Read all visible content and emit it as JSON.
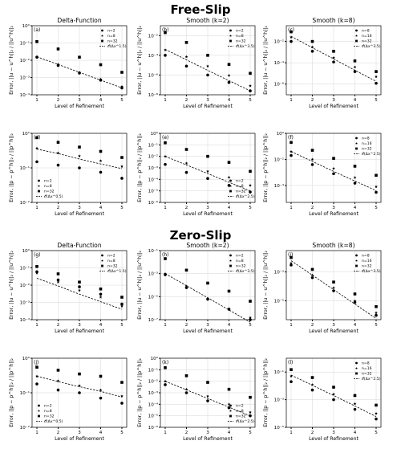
{
  "sections": [
    {
      "title": "Free-Slip"
    },
    {
      "title": "Zero-Slip"
    }
  ],
  "chart_data": [
    {
      "label": "(a)",
      "title": "Delta-Function",
      "type": "scatter",
      "xlabel": "Level of Refinement",
      "ylabel": "Error, ||u − u^h||₂ / ||u^h||₂",
      "x": [
        1,
        2,
        3,
        4,
        5
      ],
      "ylim": [
        0.0001,
        1
      ],
      "log_y": true,
      "yticks": [
        "10⁻⁴",
        "10⁻³",
        "10⁻²",
        "10⁻¹",
        "10⁰"
      ],
      "yticks_log": [
        -4,
        -3,
        -2,
        -1,
        0
      ],
      "legend": "top-right",
      "series": [
        {
          "name": "n=2",
          "marker": "circle",
          "values": [
            0.015,
            0.005,
            0.0018,
            0.0007,
            0.00025
          ]
        },
        {
          "name": "n=8",
          "marker": "star",
          "values": [
            0.016,
            0.0058,
            0.002,
            0.0008,
            0.0003
          ]
        },
        {
          "name": "n=32",
          "marker": "square",
          "values": [
            0.12,
            0.045,
            0.015,
            0.0055,
            0.002
          ]
        },
        {
          "name": "𝒪(Δx^1.5)",
          "marker": "line",
          "values": [
            0.016,
            0.0057,
            0.002,
            0.00071,
            0.00025
          ]
        }
      ]
    },
    {
      "label": "(b)",
      "title": "Smooth (k=2)",
      "type": "scatter",
      "xlabel": "Level of Refinement",
      "ylabel": "Error, ||u − u^h||₂ / ||u^h||₂",
      "x": [
        1,
        2,
        3,
        4,
        5
      ],
      "ylim": [
        1e-08,
        0.1
      ],
      "log_y": true,
      "yticks": [
        "10⁻⁸",
        "10⁻⁶",
        "10⁻⁴",
        "10⁻²"
      ],
      "yticks_log": [
        -8,
        -6,
        -4,
        -2
      ],
      "legend": "top-right",
      "series": [
        {
          "name": "n=2",
          "marker": "circle",
          "values": [
            0.0001,
            8e-06,
            1e-06,
            1.8e-07,
            2.5e-08
          ]
        },
        {
          "name": "n=8",
          "marker": "star",
          "values": [
            0.00035,
            7e-05,
            8e-06,
            9e-07,
            8e-08
          ]
        },
        {
          "name": "n=32",
          "marker": "square",
          "values": [
            0.02,
            0.002,
            0.0001,
            1.2e-05,
            1.5e-06
          ]
        },
        {
          "name": "𝒪(Δx^3.5)",
          "marker": "line",
          "values": [
            0.0004,
            3.5e-05,
            3e-06,
            2.7e-07,
            2.5e-08
          ]
        }
      ]
    },
    {
      "label": "(c)",
      "title": "Smooth (k=8)",
      "type": "scatter",
      "xlabel": "Level of Refinement",
      "ylabel": "Error, ||u − u^h||₂ / ||u^h||₂",
      "x": [
        1,
        2,
        3,
        4,
        5
      ],
      "ylim": [
        1e-07,
        0.3
      ],
      "log_y": true,
      "yticks": [
        "10⁻⁶",
        "10⁻⁴",
        "10⁻²"
      ],
      "yticks_log": [
        -6,
        -4,
        -2
      ],
      "legend": "top-right",
      "series": [
        {
          "name": "n=8",
          "marker": "circle",
          "values": [
            0.01,
            0.0012,
            0.00012,
            1.5e-05,
            1.2e-06
          ]
        },
        {
          "name": "n=16",
          "marker": "star",
          "values": [
            0.025,
            0.003,
            0.0003,
            4e-05,
            5e-06
          ]
        },
        {
          "name": "n=32",
          "marker": "square",
          "values": [
            0.08,
            0.01,
            0.0012,
            0.00015,
            1.5e-05
          ]
        },
        {
          "name": "𝒪(Δx^3.5)",
          "marker": "line",
          "values": [
            0.03,
            0.0026,
            0.00023,
            2e-05,
            1.8e-06
          ]
        }
      ]
    },
    {
      "label": "(d)",
      "title": "",
      "type": "scatter",
      "xlabel": "Level of Refinement",
      "ylabel": "Error, ||p − p^h||₂ / ||p^h||₂",
      "x": [
        1,
        2,
        3,
        4,
        5
      ],
      "ylim": [
        0.01,
        1
      ],
      "log_y": true,
      "yticks": [
        "10⁻²",
        "10⁻¹",
        "10⁰"
      ],
      "yticks_log": [
        -2,
        -1,
        0
      ],
      "legend": "bottom-left",
      "series": [
        {
          "name": "n=2",
          "marker": "circle",
          "values": [
            0.15,
            0.12,
            0.1,
            0.075,
            0.05
          ]
        },
        {
          "name": "n=8",
          "marker": "star",
          "values": [
            0.37,
            0.27,
            0.22,
            0.16,
            0.11
          ]
        },
        {
          "name": "n=32",
          "marker": "square",
          "values": [
            0.75,
            0.55,
            0.4,
            0.3,
            0.2
          ]
        },
        {
          "name": "𝒪(Δx^0.5)",
          "marker": "line",
          "values": [
            0.35,
            0.26,
            0.18,
            0.13,
            0.095
          ]
        }
      ]
    },
    {
      "label": "(e)",
      "title": "",
      "type": "scatter",
      "xlabel": "Level of Refinement",
      "ylabel": "Error, ||p − p^h||₂ / ||p^h||₂",
      "x": [
        1,
        2,
        3,
        4,
        5
      ],
      "ylim": [
        1e-06,
        1
      ],
      "log_y": true,
      "yticks": [
        "10⁻⁶",
        "10⁻⁵",
        "10⁻⁴",
        "10⁻³",
        "10⁻²",
        "10⁻¹",
        "10⁰"
      ],
      "yticks_log": [
        -6,
        -5,
        -4,
        -3,
        -2,
        -1,
        0
      ],
      "legend": "bottom-right",
      "series": [
        {
          "name": "n=2",
          "marker": "circle",
          "values": [
            0.002,
            0.0004,
            0.00012,
            3e-05,
            8e-06
          ]
        },
        {
          "name": "n=8",
          "marker": "star",
          "values": [
            0.01,
            0.0025,
            0.0005,
            0.00015,
            3e-05
          ]
        },
        {
          "name": "n=32",
          "marker": "square",
          "values": [
            0.15,
            0.04,
            0.01,
            0.003,
            0.0005
          ]
        },
        {
          "name": "𝒪(Δx^2.5)",
          "marker": "line",
          "values": [
            0.01,
            0.0018,
            0.00032,
            5.6e-05,
            1e-05
          ]
        }
      ]
    },
    {
      "label": "(f)",
      "title": "",
      "type": "scatter",
      "xlabel": "Level of Refinement",
      "ylabel": "Error, ||p − p^h||₂ / ||p^h||₂",
      "x": [
        1,
        2,
        3,
        4,
        5
      ],
      "ylim": [
        5e-06,
        1
      ],
      "log_y": true,
      "yticks": [
        "10⁻⁴",
        "10⁻²",
        "10⁰"
      ],
      "yticks_log": [
        -4,
        -2,
        0
      ],
      "legend": "top-right",
      "series": [
        {
          "name": "n=8",
          "marker": "circle",
          "values": [
            0.02,
            0.004,
            0.0008,
            0.00015,
            3e-05
          ]
        },
        {
          "name": "n=16",
          "marker": "star",
          "values": [
            0.04,
            0.01,
            0.002,
            0.0004,
            8e-05
          ]
        },
        {
          "name": "n=32",
          "marker": "square",
          "values": [
            0.2,
            0.05,
            0.012,
            0.003,
            0.0006
          ]
        },
        {
          "name": "𝒪(Δx^2.5)",
          "marker": "line",
          "values": [
            0.04,
            0.007,
            0.0012,
            0.00022,
            4e-05
          ]
        }
      ]
    },
    {
      "label": "(g)",
      "title": "Delta-Function",
      "type": "scatter",
      "xlabel": "Level of Refinement",
      "ylabel": "Error, ||u − u^h||₂ / ||u^h||₂",
      "x": [
        1,
        2,
        3,
        4,
        5
      ],
      "ylim": [
        0.0001,
        1
      ],
      "log_y": true,
      "yticks": [
        "10⁻⁴",
        "10⁻³",
        "10⁻²",
        "10⁻¹",
        "10⁰"
      ],
      "yticks_log": [
        -4,
        -3,
        -2,
        -1,
        0
      ],
      "legend": "top-right",
      "series": [
        {
          "name": "n=2",
          "marker": "circle",
          "values": [
            0.06,
            0.02,
            0.008,
            0.003,
            0.0008
          ]
        },
        {
          "name": "n=8",
          "marker": "star",
          "values": [
            0.05,
            0.015,
            0.005,
            0.002,
            0.0006
          ]
        },
        {
          "name": "n=32",
          "marker": "square",
          "values": [
            0.12,
            0.045,
            0.015,
            0.006,
            0.002
          ]
        },
        {
          "name": "𝒪(Δx^1.5)",
          "marker": "line",
          "values": [
            0.025,
            0.009,
            0.003,
            0.0011,
            0.0004
          ]
        }
      ]
    },
    {
      "label": "(h)",
      "title": "Smooth (k=2)",
      "type": "scatter",
      "xlabel": "Level of Refinement",
      "ylabel": "Error, ||u − u^h||₂ / ||u^h||₂",
      "x": [
        1,
        2,
        3,
        4,
        5
      ],
      "ylim": [
        1e-07,
        0.1
      ],
      "log_y": true,
      "yticks": [
        "10⁻⁷",
        "10⁻⁵",
        "10⁻³",
        "10⁻¹"
      ],
      "yticks_log": [
        -7,
        -5,
        -3,
        -1
      ],
      "legend": "top-right",
      "series": [
        {
          "name": "n=2",
          "marker": "circle",
          "values": [
            0.0008,
            6e-05,
            6e-06,
            8e-07,
            1e-07
          ]
        },
        {
          "name": "n=8",
          "marker": "star",
          "values": [
            0.001,
            8e-05,
            7e-06,
            9e-07,
            1.5e-07
          ]
        },
        {
          "name": "n=32",
          "marker": "square",
          "values": [
            0.02,
            0.002,
            0.00015,
            3e-05,
            4e-06
          ]
        },
        {
          "name": "𝒪(Δx^3.5)",
          "marker": "line",
          "values": [
            0.001,
            9e-05,
            8e-06,
            7e-07,
            6e-08
          ]
        }
      ]
    },
    {
      "label": "(i)",
      "title": "Smooth (k=8)",
      "type": "scatter",
      "xlabel": "Level of Refinement",
      "ylabel": "Error, ||u − u^h||₂ / ||u^h||₂",
      "x": [
        1,
        2,
        3,
        4,
        5
      ],
      "ylim": [
        5e-07,
        0.03
      ],
      "log_y": true,
      "yticks": [
        "10⁻⁵",
        "10⁻³"
      ],
      "yticks_log": [
        -5,
        -3
      ],
      "legend": "top-right",
      "series": [
        {
          "name": "n=8",
          "marker": "circle",
          "values": [
            0.003,
            0.0004,
            5e-05,
            8e-06,
            1e-06
          ]
        },
        {
          "name": "n=16",
          "marker": "star",
          "values": [
            0.004,
            0.0006,
            8e-05,
            1e-05,
            1.5e-06
          ]
        },
        {
          "name": "n=32",
          "marker": "square",
          "values": [
            0.01,
            0.0015,
            0.0002,
            3e-05,
            4e-06
          ]
        },
        {
          "name": "𝒪(Δx^3.5)",
          "marker": "line",
          "values": [
            0.006,
            0.0006,
            6e-05,
            6e-06,
            6e-07
          ]
        }
      ]
    },
    {
      "label": "(j)",
      "title": "",
      "type": "scatter",
      "xlabel": "Level of Refinement",
      "ylabel": "Error, ||p − p^h||₂ / ||p^h||₂",
      "x": [
        1,
        2,
        3,
        4,
        5
      ],
      "ylim": [
        0.01,
        1
      ],
      "log_y": true,
      "yticks": [
        "10⁻²",
        "10⁻¹",
        "10⁰"
      ],
      "yticks_log": [
        -2,
        -1,
        0
      ],
      "legend": "bottom-left",
      "series": [
        {
          "name": "n=2",
          "marker": "circle",
          "values": [
            0.18,
            0.12,
            0.1,
            0.07,
            0.05
          ]
        },
        {
          "name": "n=8",
          "marker": "star",
          "values": [
            0.3,
            0.22,
            0.16,
            0.12,
            0.08
          ]
        },
        {
          "name": "n=32",
          "marker": "square",
          "values": [
            0.55,
            0.45,
            0.35,
            0.3,
            0.2
          ]
        },
        {
          "name": "𝒪(Δx^0.5)",
          "marker": "line",
          "values": [
            0.3,
            0.21,
            0.15,
            0.11,
            0.075
          ]
        }
      ]
    },
    {
      "label": "(k)",
      "title": "",
      "type": "scatter",
      "xlabel": "Level of Refinement",
      "ylabel": "Error, ||p − p^h||₂ / ||p^h||₂",
      "x": [
        1,
        2,
        3,
        4,
        5
      ],
      "ylim": [
        1e-06,
        1
      ],
      "log_y": true,
      "yticks": [
        "10⁻⁶",
        "10⁻⁵",
        "10⁻⁴",
        "10⁻³",
        "10⁻²",
        "10⁻¹",
        "10⁰"
      ],
      "yticks_log": [
        -6,
        -5,
        -4,
        -3,
        -2,
        -1,
        0
      ],
      "legend": "bottom-right",
      "series": [
        {
          "name": "n=2",
          "marker": "circle",
          "values": [
            0.005,
            0.001,
            0.0002,
            5e-05,
            1e-05
          ]
        },
        {
          "name": "n=8",
          "marker": "star",
          "values": [
            0.01,
            0.002,
            0.0005,
            0.0001,
            2e-05
          ]
        },
        {
          "name": "n=32",
          "marker": "square",
          "values": [
            0.15,
            0.03,
            0.008,
            0.002,
            0.0004
          ]
        },
        {
          "name": "𝒪(Δx^2.5)",
          "marker": "line",
          "values": [
            0.01,
            0.0018,
            0.00032,
            5.6e-05,
            1e-05
          ]
        }
      ]
    },
    {
      "label": "(l)",
      "title": "",
      "type": "scatter",
      "xlabel": "Level of Refinement",
      "ylabel": "Error, ||p − p^h||₂ / ||p^h||₂",
      "x": [
        1,
        2,
        3,
        4,
        5
      ],
      "ylim": [
        1e-05,
        1
      ],
      "log_y": true,
      "yticks": [
        "10⁻⁵",
        "10⁻³",
        "10⁻¹"
      ],
      "yticks_log": [
        -5,
        -3,
        -1
      ],
      "legend": "top-right",
      "series": [
        {
          "name": "n=8",
          "marker": "circle",
          "values": [
            0.02,
            0.005,
            0.001,
            0.0002,
            4e-05
          ]
        },
        {
          "name": "n=16",
          "marker": "star",
          "values": [
            0.05,
            0.012,
            0.0025,
            0.0005,
            0.0001
          ]
        },
        {
          "name": "n=32",
          "marker": "square",
          "values": [
            0.15,
            0.04,
            0.008,
            0.002,
            0.0004
          ]
        },
        {
          "name": "𝒪(Δx^2.5)",
          "marker": "line",
          "values": [
            0.06,
            0.011,
            0.002,
            0.00035,
            6e-05
          ]
        }
      ]
    }
  ]
}
